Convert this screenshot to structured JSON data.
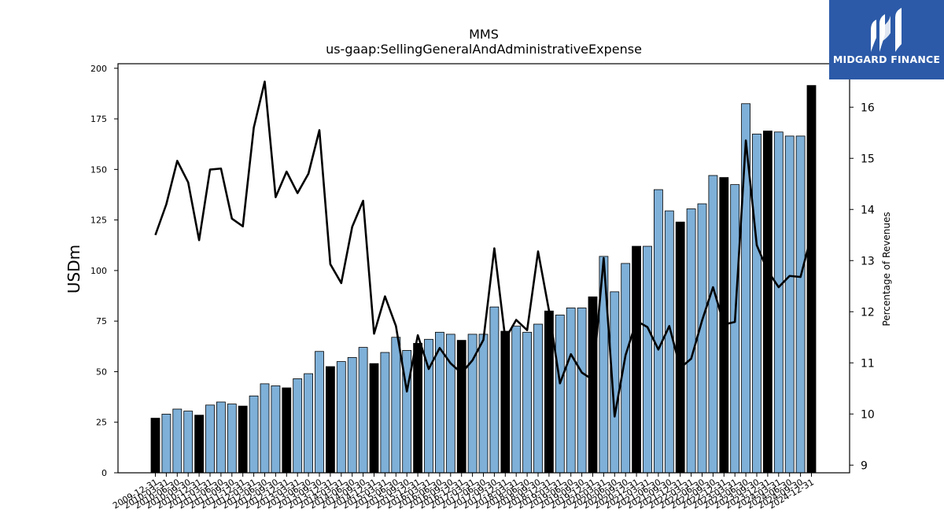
{
  "chart_data": {
    "type": "bar",
    "title": "MMS",
    "subtitle": "us-gaap:SellingGeneralAndAdministrativeExpense",
    "ylabel": "USDm",
    "y2label": "Percentage of Revenues",
    "ylim": [
      0,
      200
    ],
    "y2lim": [
      8.85,
      16.85
    ],
    "yticks": [
      0,
      25,
      50,
      75,
      100,
      125,
      150,
      175,
      200
    ],
    "y2ticks": [
      9,
      10,
      11,
      12,
      13,
      14,
      15,
      16
    ],
    "categories": [
      "2009-12-31",
      "2010-03-31",
      "2010-06-30",
      "2010-09-30",
      "2010-12-31",
      "2011-03-31",
      "2011-06-30",
      "2011-09-30",
      "2011-12-31",
      "2012-03-31",
      "2012-06-30",
      "2012-09-30",
      "2012-12-31",
      "2013-03-31",
      "2013-06-30",
      "2013-09-30",
      "2013-12-31",
      "2014-03-31",
      "2014-06-30",
      "2014-09-30",
      "2014-12-31",
      "2015-03-31",
      "2015-06-30",
      "2015-09-30",
      "2015-12-31",
      "2016-03-31",
      "2016-06-30",
      "2016-09-30",
      "2016-12-31",
      "2017-03-31",
      "2017-06-30",
      "2017-09-30",
      "2017-12-31",
      "2018-03-31",
      "2018-06-30",
      "2018-09-30",
      "2018-12-31",
      "2019-03-31",
      "2019-06-30",
      "2019-09-30",
      "2019-12-31",
      "2020-03-31",
      "2020-06-30",
      "2020-09-30",
      "2020-12-31",
      "2021-03-31",
      "2021-06-30",
      "2021-09-30",
      "2021-12-31",
      "2022-03-31",
      "2022-06-30",
      "2022-09-30",
      "2022-12-31",
      "2023-03-31",
      "2023-06-30",
      "2023-09-30",
      "2023-12-31",
      "2024-03-31",
      "2024-06-30",
      "2024-09-30",
      "2024-12-31"
    ],
    "series": [
      {
        "values": [
          27,
          29,
          31.5,
          30.5,
          28.5,
          33.5,
          35,
          34,
          33,
          38,
          44,
          43,
          42,
          46.5,
          49,
          60,
          52.5,
          55,
          57,
          62,
          54,
          59.5,
          67,
          60.5,
          64,
          66,
          69.5,
          68.5,
          65.5,
          68.5,
          68.5,
          82,
          70,
          72.5,
          69.5,
          73.5,
          80,
          78,
          81.5,
          81.5,
          87,
          107,
          89.5,
          103.5,
          112,
          112,
          140,
          129.5,
          124,
          130.5,
          133,
          147,
          146,
          142.5,
          182.5,
          167.5,
          169,
          168.5,
          166.5,
          166.5,
          191.5
        ],
        "highlight": [
          0,
          4,
          8,
          12,
          16,
          20,
          24,
          28,
          32,
          36,
          40,
          44,
          48,
          52,
          56,
          60
        ],
        "color": "#7eb0d8",
        "highlight_color": "#000000"
      },
      {
        "type": "line",
        "axis": "right",
        "color": "#000000",
        "values": [
          13.5,
          14.1,
          14.95,
          14.53,
          13.4,
          14.78,
          14.8,
          13.82,
          13.67,
          15.6,
          16.5,
          14.24,
          14.74,
          14.32,
          14.7,
          15.55,
          12.93,
          12.56,
          13.66,
          14.17,
          11.57,
          12.3,
          11.72,
          10.44,
          11.54,
          10.88,
          11.29,
          10.99,
          10.8,
          11.05,
          11.45,
          13.24,
          11.47,
          11.84,
          11.64,
          13.18,
          12.02,
          10.6,
          11.17,
          10.81,
          10.67,
          13.05,
          9.95,
          11.15,
          11.82,
          11.7,
          11.26,
          11.72,
          10.9,
          11.08,
          11.83,
          12.48,
          11.75,
          11.8,
          15.35,
          13.3,
          12.8,
          12.48,
          12.7,
          12.68,
          13.5
        ]
      }
    ],
    "grid": false,
    "legend": "none"
  },
  "logo": {
    "text": "MIDGARD FINANCE",
    "bg": "#2c5aa8"
  }
}
